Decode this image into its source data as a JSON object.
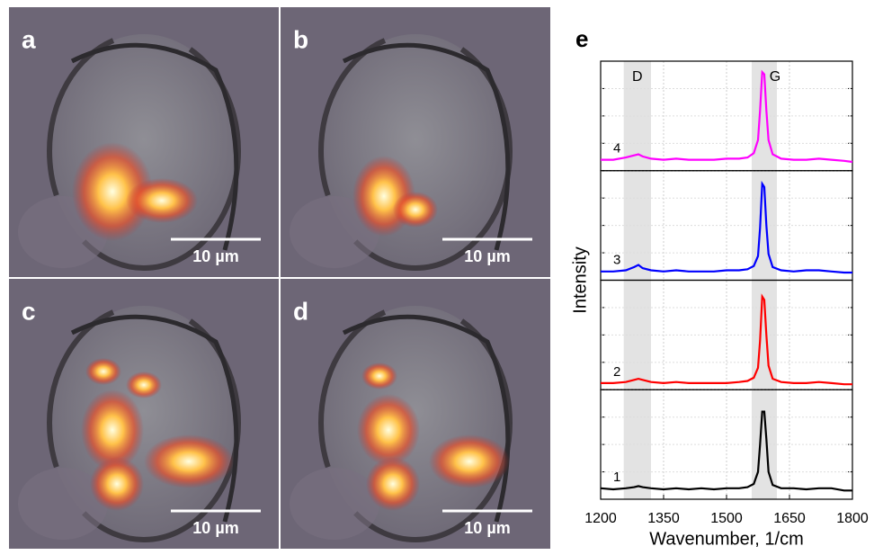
{
  "panels": [
    {
      "label": "a",
      "scale_bar": "10 µm"
    },
    {
      "label": "b",
      "scale_bar": "10 µm"
    },
    {
      "label": "c",
      "scale_bar": "10 µm"
    },
    {
      "label": "d",
      "scale_bar": "10 µm"
    }
  ],
  "chart_data": {
    "type": "line",
    "panel_label": "e",
    "xlabel": "Wavenumber, 1/cm",
    "ylabel": "Intensity",
    "xlim": [
      1200,
      1800
    ],
    "xticks": [
      1200,
      1350,
      1500,
      1650,
      1800
    ],
    "ylim": [
      0,
      1
    ],
    "yticks": [
      0,
      0.25,
      0.5,
      0.75,
      1
    ],
    "grid": true,
    "bands": [
      {
        "label": "D",
        "range": [
          1255,
          1320
        ]
      },
      {
        "label": "G",
        "range": [
          1560,
          1620
        ]
      }
    ],
    "x": [
      1200,
      1230,
      1260,
      1280,
      1290,
      1300,
      1320,
      1350,
      1380,
      1410,
      1440,
      1470,
      1500,
      1530,
      1550,
      1565,
      1575,
      1580,
      1585,
      1590,
      1595,
      1600,
      1610,
      1630,
      1660,
      1690,
      1720,
      1750,
      1780,
      1800
    ],
    "series": [
      {
        "name": "1",
        "color": "#000000",
        "values": [
          0.1,
          0.09,
          0.1,
          0.11,
          0.12,
          0.11,
          0.1,
          0.09,
          0.1,
          0.09,
          0.1,
          0.09,
          0.1,
          0.1,
          0.11,
          0.14,
          0.25,
          0.5,
          0.8,
          0.8,
          0.55,
          0.25,
          0.13,
          0.1,
          0.1,
          0.09,
          0.1,
          0.1,
          0.08,
          0.08
        ]
      },
      {
        "name": "2",
        "color": "#ff0000",
        "values": [
          0.06,
          0.06,
          0.07,
          0.09,
          0.1,
          0.09,
          0.07,
          0.06,
          0.07,
          0.06,
          0.06,
          0.06,
          0.06,
          0.07,
          0.08,
          0.11,
          0.2,
          0.45,
          0.85,
          0.82,
          0.5,
          0.22,
          0.1,
          0.07,
          0.06,
          0.06,
          0.07,
          0.06,
          0.05,
          0.05
        ]
      },
      {
        "name": "3",
        "color": "#0000ff",
        "values": [
          0.08,
          0.08,
          0.09,
          0.12,
          0.14,
          0.11,
          0.09,
          0.08,
          0.09,
          0.08,
          0.08,
          0.08,
          0.09,
          0.09,
          0.1,
          0.13,
          0.22,
          0.48,
          0.88,
          0.85,
          0.5,
          0.24,
          0.12,
          0.09,
          0.08,
          0.09,
          0.09,
          0.08,
          0.07,
          0.07
        ]
      },
      {
        "name": "4",
        "color": "#ff00ff",
        "values": [
          0.1,
          0.1,
          0.12,
          0.14,
          0.15,
          0.13,
          0.11,
          0.1,
          0.11,
          0.1,
          0.1,
          0.1,
          0.11,
          0.11,
          0.12,
          0.16,
          0.28,
          0.55,
          0.9,
          0.88,
          0.55,
          0.28,
          0.15,
          0.11,
          0.1,
          0.1,
          0.11,
          0.1,
          0.09,
          0.08
        ]
      }
    ]
  }
}
